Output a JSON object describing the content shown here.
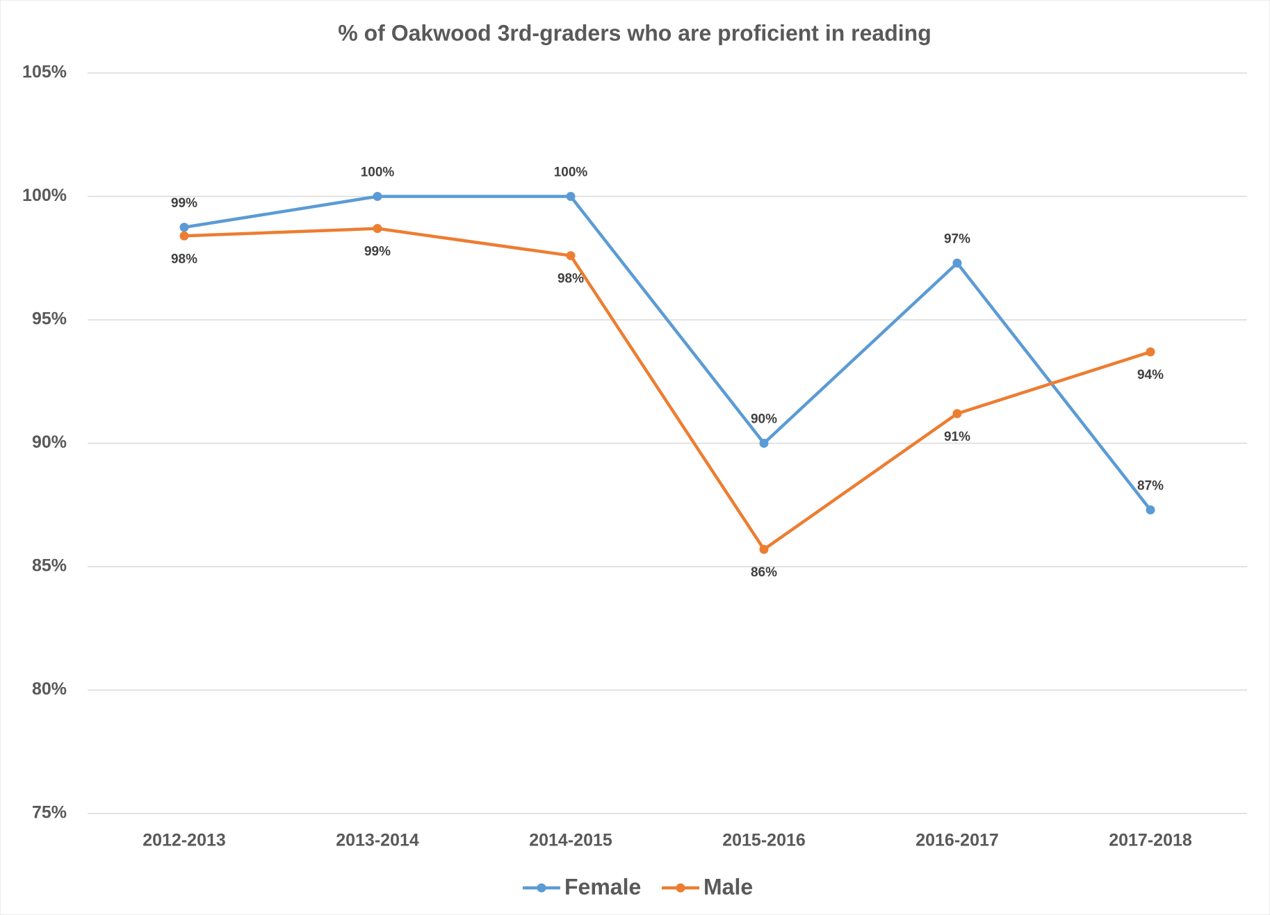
{
  "chart_data": {
    "type": "line",
    "title": "% of Oakwood 3rd-graders who are proficient in reading",
    "categories": [
      "2012-2013",
      "2013-2014",
      "2014-2015",
      "2015-2016",
      "2016-2017",
      "2017-2018"
    ],
    "series": [
      {
        "name": "Female",
        "color": "#5b9bd5",
        "values": [
          98.75,
          100,
          100,
          90,
          97.3,
          87.3
        ],
        "value_labels": [
          "99%",
          "100%",
          "100%",
          "90%",
          "97%",
          "87%"
        ]
      },
      {
        "name": "Male",
        "color": "#ed7d31",
        "values": [
          98.4,
          98.7,
          97.6,
          85.7,
          91.2,
          93.7
        ],
        "value_labels": [
          "98%",
          "99%",
          "98%",
          "86%",
          "91%",
          "94%"
        ]
      }
    ],
    "ylim": [
      75,
      105
    ],
    "yticks": [
      {
        "value": 75,
        "label": "75%"
      },
      {
        "value": 80,
        "label": "80%"
      },
      {
        "value": 85,
        "label": "85%"
      },
      {
        "value": 90,
        "label": "90%"
      },
      {
        "value": 95,
        "label": "95%"
      },
      {
        "value": 100,
        "label": "100%"
      },
      {
        "value": 105,
        "label": "105%"
      }
    ],
    "grid": true,
    "legend": "bottom"
  }
}
